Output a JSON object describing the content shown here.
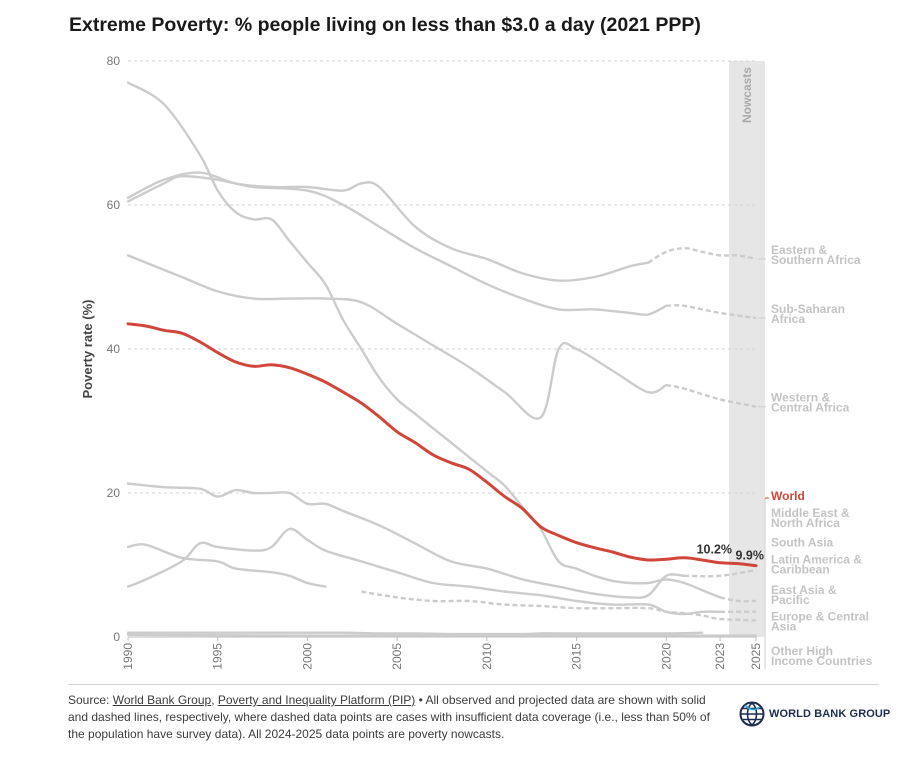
{
  "title": "Extreme Poverty: % people living on less than $3.0 a day (2021 PPP)",
  "source": {
    "prefix": "Source: ",
    "link1": "World Bank Group",
    "sep": ", ",
    "link2": "Poverty and Inequality Platform (PIP)",
    "rest": " • All observed and projected data are shown with solid and dashed lines, respectively, where dashed data points are cases with insufficient data coverage (i.e., less than 50% of the population have survey data). All 2024-2025 data points are poverty nowcasts."
  },
  "logo_text": "WORLD BANK GROUP",
  "colors": {
    "world": "#d0463a",
    "region": "#cccccc",
    "nowcast_band": "#e6e6e6",
    "region_label": "#c4c4c4"
  },
  "chart_data": {
    "type": "line",
    "title": "Extreme Poverty: % people living on less than $3.0 a day (2021 PPP)",
    "xlabel": "",
    "ylabel": "Poverty rate (%)",
    "xlim": [
      1990,
      2025
    ],
    "ylim": [
      0,
      80
    ],
    "yticks": [
      0,
      20,
      40,
      60,
      80
    ],
    "xticks": [
      1990,
      1995,
      2000,
      2005,
      2010,
      2015,
      2020,
      2023,
      2025
    ],
    "nowcast_band": {
      "label": "Nowcasts",
      "from": 2023.5,
      "to": 2025.5
    },
    "grid": true,
    "annotations": [
      {
        "text": "10.2%",
        "x": 2024,
        "y": 10.2
      },
      {
        "text": "9.9%",
        "x": 2025,
        "y": 9.9
      }
    ],
    "series": [
      {
        "name": "Eastern & Southern Africa",
        "label_lines": [
          "Eastern &",
          "Southern Africa"
        ],
        "label_y": 52.5,
        "highlight": false,
        "x": [
          1990,
          1992,
          1994,
          1996,
          1998,
          2000,
          2002,
          2003,
          2004,
          2006,
          2008,
          2010,
          2012,
          2014,
          2016,
          2018,
          2019,
          2020,
          2021,
          2022,
          2023,
          2024,
          2025
        ],
        "y": [
          61,
          63.5,
          64.5,
          63,
          62.5,
          62.5,
          62,
          63,
          62.5,
          57,
          54,
          52.5,
          50.5,
          49.5,
          50,
          51.5,
          52,
          53.5,
          54,
          53.5,
          53,
          53,
          52.5
        ],
        "dashed_from": 2019
      },
      {
        "name": "Sub-Saharan Africa",
        "label_lines": [
          "Sub-Saharan",
          "Africa"
        ],
        "label_y": 44.3,
        "highlight": false,
        "x": [
          1990,
          1992,
          1993,
          1995,
          1997,
          2000,
          2002,
          2004,
          2006,
          2008,
          2010,
          2012,
          2014,
          2016,
          2018,
          2019,
          2020,
          2021,
          2023,
          2025
        ],
        "y": [
          60.5,
          63,
          64,
          63.5,
          62.5,
          62,
          60,
          57,
          54,
          51.5,
          49,
          47,
          45.5,
          45.5,
          45,
          44.8,
          46,
          46,
          45,
          44.3
        ],
        "dashed_from": 2020
      },
      {
        "name": "Western & Central Africa",
        "label_lines": [
          "Western &",
          "Central Africa"
        ],
        "label_y": 32,
        "highlight": false,
        "x": [
          1990,
          1991,
          1993,
          1995,
          1997,
          1999,
          2001,
          2003,
          2005,
          2007,
          2009,
          2011,
          2013,
          2014,
          2015,
          2017,
          2019,
          2020,
          2021,
          2023,
          2025
        ],
        "y": [
          53,
          52,
          50,
          48,
          47,
          47,
          47,
          46.5,
          43.5,
          40.5,
          37.5,
          34,
          30.5,
          40,
          40,
          37,
          34,
          35,
          34.5,
          33,
          32
        ],
        "dashed_from": 2020
      },
      {
        "name": "World",
        "label_lines": [
          "World"
        ],
        "label_y": 19,
        "highlight": true,
        "x": [
          1990,
          1991,
          1992,
          1993,
          1994,
          1995,
          1996,
          1997,
          1998,
          1999,
          2000,
          2001,
          2002,
          2003,
          2004,
          2005,
          2006,
          2007,
          2008,
          2009,
          2010,
          2011,
          2012,
          2013,
          2014,
          2015,
          2016,
          2017,
          2018,
          2019,
          2020,
          2021,
          2022,
          2023,
          2024,
          2025
        ],
        "y": [
          43.5,
          43.2,
          42.6,
          42.2,
          41,
          39.5,
          38.2,
          37.6,
          37.8,
          37.4,
          36.5,
          35.4,
          34,
          32.5,
          30.6,
          28.5,
          27,
          25.3,
          24.2,
          23.3,
          21.5,
          19.5,
          17.8,
          15.3,
          14.1,
          13.1,
          12.4,
          11.8,
          11.1,
          10.7,
          10.8,
          11,
          10.7,
          10.3,
          10.2,
          9.9
        ],
        "dashed_from": null
      },
      {
        "name": "Middle East & North Africa",
        "label_lines": [
          "Middle East &",
          "North Africa"
        ],
        "label_y": 16,
        "highlight": false,
        "x": [
          1990,
          1991,
          1993,
          1995,
          1996,
          1998,
          1999,
          2000,
          2001,
          2003,
          2005,
          2007,
          2009,
          2011,
          2013,
          2015,
          2017,
          2019,
          2020,
          2021,
          2022,
          2023,
          2025
        ],
        "y": [
          12.5,
          12.8,
          11,
          10.5,
          9.5,
          9,
          8.5,
          7.5,
          7,
          6.3,
          5.5,
          5,
          5,
          4.5,
          4.3,
          4,
          4,
          4,
          3.5,
          3.3,
          3,
          2.5,
          2.3
        ],
        "dashed_from": 2002
      },
      {
        "name": "South Asia",
        "label_lines": [
          "South Asia"
        ],
        "label_y": 12.6,
        "highlight": false,
        "x": [
          1990,
          1992,
          1994,
          1995,
          1996,
          1997,
          1998,
          1999,
          2000,
          2001,
          2002,
          2004,
          2006,
          2008,
          2010,
          2012,
          2014,
          2016,
          2018,
          2019,
          2020,
          2021,
          2023,
          2025
        ],
        "y": [
          21.3,
          20.8,
          20.6,
          19.5,
          20.4,
          20,
          20,
          20,
          18.5,
          18.5,
          17.5,
          15.5,
          13,
          10.5,
          9.5,
          8,
          7,
          6,
          5.5,
          5.8,
          8.5,
          8.5,
          8.5,
          9.3
        ],
        "dashed_from": 2021
      },
      {
        "name": "Latin America & Caribbean",
        "label_lines": [
          "Latin America &",
          "Caribbean"
        ],
        "label_y": 9.5,
        "highlight": false,
        "x": [
          1990,
          1991,
          1993,
          1994,
          1995,
          1997,
          1998,
          1999,
          2000,
          2001,
          2003,
          2005,
          2007,
          2009,
          2011,
          2013,
          2015,
          2017,
          2019,
          2020,
          2021,
          2022,
          2023,
          2025
        ],
        "y": [
          7,
          8,
          10.5,
          13,
          12.5,
          12,
          12.5,
          15,
          13.5,
          12,
          10.5,
          9,
          7.5,
          7,
          6.3,
          5.8,
          5,
          4.5,
          4.5,
          3.5,
          3.2,
          3.5,
          3.5,
          3.5
        ],
        "dashed_from": 2023
      },
      {
        "name": "East Asia & Pacific",
        "label_lines": [
          "East Asia &",
          "Pacific"
        ],
        "label_y": 5.3,
        "highlight": false,
        "x": [
          1990,
          1992,
          1994,
          1995,
          1996,
          1997,
          1998,
          1999,
          2000,
          2001,
          2002,
          2003,
          2004,
          2005,
          2006,
          2007,
          2008,
          2009,
          2010,
          2011,
          2012,
          2013,
          2014,
          2015,
          2016,
          2017,
          2018,
          2019,
          2020,
          2021,
          2022,
          2023,
          2024,
          2025
        ],
        "y": [
          77,
          74,
          67,
          62,
          59,
          58,
          58,
          55,
          52,
          49,
          44,
          40,
          36,
          33,
          31,
          29,
          27,
          25,
          23,
          21,
          18,
          15,
          10.5,
          9.5,
          8.5,
          7.8,
          7.5,
          7.5,
          8,
          7.5,
          6.5,
          5.5,
          5,
          5
        ],
        "dashed_from": 2023
      },
      {
        "name": "Europe & Central Asia",
        "label_lines": [
          "Europe & Central",
          "Asia"
        ],
        "label_y": 1.6,
        "highlight": false,
        "x": [
          1990,
          1992,
          1994,
          1996,
          1998,
          2000,
          2002,
          2004,
          2006,
          2008,
          2010,
          2012,
          2013,
          2014,
          2016,
          2018,
          2020,
          2022,
          2025
        ],
        "y": [
          0.6,
          0.6,
          0.6,
          0.6,
          0.6,
          0.6,
          0.6,
          0.5,
          0.5,
          0.4,
          0.4,
          0.4,
          0.5,
          0.5,
          0.5,
          0.5,
          0.5,
          0.6,
          0.6
        ],
        "dashed_from": 2023
      },
      {
        "name": "Other High Income Countries",
        "label_lines": [
          "Other High",
          "Income Countries"
        ],
        "label_y": -3.2,
        "highlight": false,
        "x": [
          1990,
          2000,
          2010,
          2020,
          2025
        ],
        "y": [
          0.3,
          0.2,
          0.2,
          0.2,
          0.2
        ],
        "dashed_from": null
      }
    ]
  }
}
